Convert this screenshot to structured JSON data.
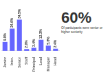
{
  "chart_data": {
    "type": "bar",
    "categories": [
      "Junior",
      "Inter.",
      "Senior",
      "Staff",
      "Principal",
      "Lead",
      "Manager",
      "Head"
    ],
    "values": [
      9.9,
      24.6,
      34.5,
      2.0,
      3.4,
      12.3,
      5.8,
      2.4
    ],
    "value_labels": [
      "9.9%",
      "24.6%",
      "34.5%",
      "2.0%",
      "3.4%",
      "12.3%",
      "5.8%",
      "2.4%"
    ],
    "data_labels": true,
    "color": "#6666ff",
    "ylim": [
      0,
      44
    ],
    "grid": false,
    "tick_labels": "x",
    "annotations": [
      "60%",
      "Of participants were senior or",
      "higher seniority"
    ]
  }
}
